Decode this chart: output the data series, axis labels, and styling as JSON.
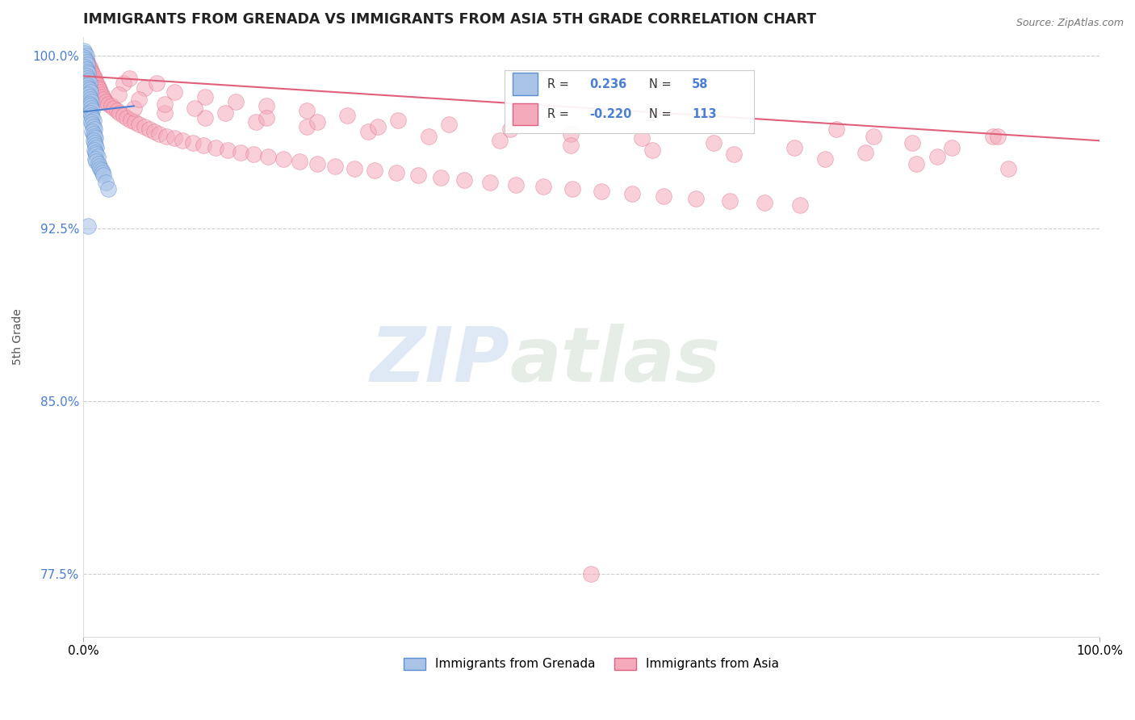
{
  "title": "IMMIGRANTS FROM GRENADA VS IMMIGRANTS FROM ASIA 5TH GRADE CORRELATION CHART",
  "source_text": "Source: ZipAtlas.com",
  "ylabel": "5th Grade",
  "watermark_zip": "ZIP",
  "watermark_atlas": "atlas",
  "xmin": 0.0,
  "xmax": 1.0,
  "ymin": 0.748,
  "ymax": 1.008,
  "yticks": [
    0.775,
    0.85,
    0.925,
    1.0
  ],
  "ytick_labels": [
    "77.5%",
    "85.0%",
    "92.5%",
    "100.0%"
  ],
  "xticks": [
    0.0,
    1.0
  ],
  "xtick_labels": [
    "0.0%",
    "100.0%"
  ],
  "legend_r_blue": "0.236",
  "legend_n_blue": "58",
  "legend_r_pink": "-0.220",
  "legend_n_pink": "113",
  "blue_color": "#aac4e8",
  "pink_color": "#f5aabb",
  "blue_edge_color": "#5a8fd0",
  "pink_edge_color": "#e06080",
  "blue_line_color": "#4a7fd4",
  "pink_line_color": "#e0607a",
  "grid_color": "#c8c8c8",
  "bg_color": "#ffffff",
  "blue_trend": [
    0.0,
    0.05,
    0.9755,
    0.978
  ],
  "pink_trend": [
    0.0,
    1.0,
    0.991,
    0.963
  ],
  "blue_dots_x": [
    0.001,
    0.002,
    0.003,
    0.001,
    0.002,
    0.003,
    0.004,
    0.002,
    0.003,
    0.004,
    0.005,
    0.003,
    0.004,
    0.005,
    0.006,
    0.004,
    0.005,
    0.006,
    0.007,
    0.005,
    0.006,
    0.007,
    0.008,
    0.006,
    0.007,
    0.008,
    0.009,
    0.007,
    0.008,
    0.009,
    0.01,
    0.008,
    0.009,
    0.01,
    0.011,
    0.009,
    0.01,
    0.011,
    0.012,
    0.01,
    0.011,
    0.012,
    0.013,
    0.011,
    0.012,
    0.013,
    0.014,
    0.012,
    0.013,
    0.015,
    0.016,
    0.017,
    0.018,
    0.019,
    0.02,
    0.022,
    0.025,
    0.005
  ],
  "blue_dots_y": [
    1.002,
    1.001,
    1.0,
    0.999,
    0.998,
    0.997,
    0.996,
    0.995,
    0.994,
    0.993,
    0.992,
    0.991,
    0.99,
    0.989,
    0.988,
    0.987,
    0.986,
    0.985,
    0.984,
    0.983,
    0.982,
    0.981,
    0.98,
    0.979,
    0.978,
    0.977,
    0.976,
    0.975,
    0.974,
    0.973,
    0.972,
    0.971,
    0.97,
    0.969,
    0.968,
    0.967,
    0.966,
    0.965,
    0.964,
    0.963,
    0.962,
    0.961,
    0.96,
    0.959,
    0.958,
    0.957,
    0.956,
    0.955,
    0.954,
    0.953,
    0.952,
    0.951,
    0.95,
    0.949,
    0.948,
    0.945,
    0.942,
    0.926
  ],
  "pink_dots_x": [
    0.002,
    0.003,
    0.004,
    0.005,
    0.006,
    0.007,
    0.008,
    0.009,
    0.01,
    0.011,
    0.012,
    0.013,
    0.014,
    0.015,
    0.016,
    0.017,
    0.018,
    0.019,
    0.02,
    0.022,
    0.025,
    0.028,
    0.03,
    0.033,
    0.036,
    0.04,
    0.043,
    0.047,
    0.051,
    0.055,
    0.06,
    0.065,
    0.07,
    0.075,
    0.082,
    0.09,
    0.098,
    0.108,
    0.118,
    0.13,
    0.142,
    0.155,
    0.168,
    0.182,
    0.197,
    0.213,
    0.23,
    0.248,
    0.267,
    0.287,
    0.308,
    0.33,
    0.352,
    0.375,
    0.4,
    0.426,
    0.453,
    0.481,
    0.51,
    0.54,
    0.571,
    0.603,
    0.636,
    0.67,
    0.705,
    0.741,
    0.778,
    0.816,
    0.855,
    0.895,
    0.04,
    0.06,
    0.09,
    0.12,
    0.15,
    0.18,
    0.22,
    0.26,
    0.31,
    0.36,
    0.42,
    0.48,
    0.55,
    0.62,
    0.7,
    0.77,
    0.84,
    0.9,
    0.05,
    0.08,
    0.12,
    0.17,
    0.22,
    0.28,
    0.34,
    0.41,
    0.48,
    0.56,
    0.64,
    0.73,
    0.82,
    0.91,
    0.035,
    0.055,
    0.08,
    0.11,
    0.14,
    0.18,
    0.23,
    0.29,
    0.045,
    0.072,
    0.5
  ],
  "pink_dots_y": [
    0.999,
    0.998,
    0.997,
    0.996,
    0.995,
    0.994,
    0.993,
    0.992,
    0.991,
    0.99,
    0.989,
    0.988,
    0.987,
    0.986,
    0.985,
    0.984,
    0.983,
    0.982,
    0.981,
    0.98,
    0.979,
    0.978,
    0.977,
    0.976,
    0.975,
    0.974,
    0.973,
    0.972,
    0.971,
    0.97,
    0.969,
    0.968,
    0.967,
    0.966,
    0.965,
    0.964,
    0.963,
    0.962,
    0.961,
    0.96,
    0.959,
    0.958,
    0.957,
    0.956,
    0.955,
    0.954,
    0.953,
    0.952,
    0.951,
    0.95,
    0.949,
    0.948,
    0.947,
    0.946,
    0.945,
    0.944,
    0.943,
    0.942,
    0.941,
    0.94,
    0.939,
    0.938,
    0.937,
    0.936,
    0.935,
    0.968,
    0.965,
    0.962,
    0.96,
    0.965,
    0.988,
    0.986,
    0.984,
    0.982,
    0.98,
    0.978,
    0.976,
    0.974,
    0.972,
    0.97,
    0.968,
    0.966,
    0.964,
    0.962,
    0.96,
    0.958,
    0.956,
    0.965,
    0.977,
    0.975,
    0.973,
    0.971,
    0.969,
    0.967,
    0.965,
    0.963,
    0.961,
    0.959,
    0.957,
    0.955,
    0.953,
    0.951,
    0.983,
    0.981,
    0.979,
    0.977,
    0.975,
    0.973,
    0.971,
    0.969,
    0.99,
    0.988,
    0.775
  ]
}
